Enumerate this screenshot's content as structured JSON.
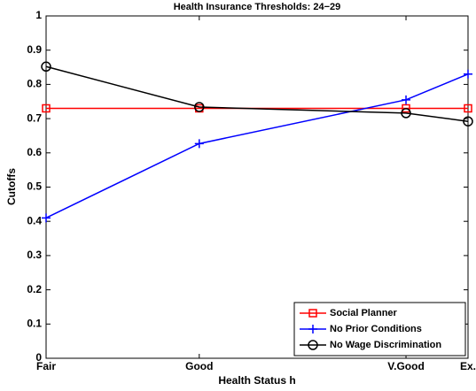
{
  "chart_data": {
    "type": "line",
    "title": "Health Insurance Thresholds: 24−29",
    "x_label": "Health Status h",
    "y_label": "Cutoffs",
    "x": [
      0,
      0.363,
      0.853,
      1
    ],
    "xlim": [
      0,
      1
    ],
    "xticks": [
      {
        "value": 0,
        "label": "Fair"
      },
      {
        "value": 0.363,
        "label": "Good"
      },
      {
        "value": 0.853,
        "label": "V.Good"
      },
      {
        "value": 1,
        "label": "Ex."
      }
    ],
    "ylim": [
      0,
      1
    ],
    "yticks": [
      0,
      0.1,
      0.2,
      0.3,
      0.4,
      0.5,
      0.6,
      0.7,
      0.8,
      0.9,
      1
    ],
    "legend_position": "lower-right",
    "series": [
      {
        "name": "Social Planner",
        "color": "#ff0000",
        "marker": "square",
        "values": [
          0.73,
          0.73,
          0.73,
          0.73
        ]
      },
      {
        "name": "No Prior Conditions",
        "color": "#0000ff",
        "marker": "plus",
        "values": [
          0.41,
          0.627,
          0.755,
          0.83
        ]
      },
      {
        "name": "No Wage Discrimination",
        "color": "#000000",
        "marker": "circle",
        "values": [
          0.852,
          0.734,
          0.716,
          0.692
        ]
      }
    ]
  }
}
